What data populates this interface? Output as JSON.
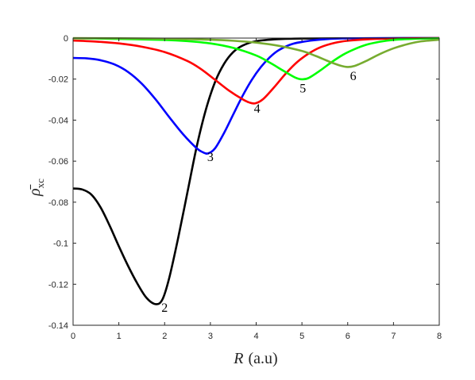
{
  "chart_data": {
    "type": "line",
    "xlabel_var": "R",
    "xlabel_unit": "(a.u)",
    "ylabel_main": "ρ̄",
    "ylabel_sub": "xc",
    "xlim": [
      0,
      8
    ],
    "ylim": [
      -0.14,
      0
    ],
    "x_ticks": [
      0,
      1,
      2,
      3,
      4,
      5,
      6,
      7,
      8
    ],
    "x_tick_labels": [
      "0",
      "1",
      "2",
      "3",
      "4",
      "5",
      "6",
      "7",
      "8"
    ],
    "y_ticks": [
      0,
      -0.02,
      -0.04,
      -0.06,
      -0.08,
      -0.1,
      -0.12,
      -0.14
    ],
    "y_tick_labels": [
      "0",
      "-0.02",
      "-0.04",
      "-0.06",
      "-0.08",
      "-0.1",
      "-0.12",
      "-0.14"
    ],
    "grid": false,
    "series": [
      {
        "label": "2",
        "color": "#000000",
        "label_at": [
          1.93,
          -0.1315
        ],
        "points": [
          [
            0,
            -0.0733
          ],
          [
            0.2,
            -0.0738
          ],
          [
            0.4,
            -0.0763
          ],
          [
            0.6,
            -0.0825
          ],
          [
            0.8,
            -0.0915
          ],
          [
            1.0,
            -0.1015
          ],
          [
            1.2,
            -0.111
          ],
          [
            1.4,
            -0.1195
          ],
          [
            1.6,
            -0.1265
          ],
          [
            1.8,
            -0.1297
          ],
          [
            1.95,
            -0.1275
          ],
          [
            2.1,
            -0.117
          ],
          [
            2.3,
            -0.097
          ],
          [
            2.5,
            -0.075
          ],
          [
            2.7,
            -0.053
          ],
          [
            2.9,
            -0.035
          ],
          [
            3.1,
            -0.0215
          ],
          [
            3.3,
            -0.0125
          ],
          [
            3.5,
            -0.0068
          ],
          [
            3.7,
            -0.0037
          ],
          [
            4.0,
            -0.0015
          ],
          [
            4.5,
            -0.0005
          ],
          [
            5,
            -0.0002
          ],
          [
            6,
            -0.0001
          ],
          [
            8,
            0
          ]
        ]
      },
      {
        "label": "3",
        "color": "#0000ff",
        "label_at": [
          2.93,
          -0.058
        ],
        "points": [
          [
            0,
            -0.0097
          ],
          [
            0.3,
            -0.0099
          ],
          [
            0.6,
            -0.0108
          ],
          [
            0.9,
            -0.0128
          ],
          [
            1.2,
            -0.0165
          ],
          [
            1.5,
            -0.0222
          ],
          [
            1.8,
            -0.0298
          ],
          [
            2.1,
            -0.0385
          ],
          [
            2.4,
            -0.0468
          ],
          [
            2.7,
            -0.0537
          ],
          [
            2.85,
            -0.0558
          ],
          [
            2.95,
            -0.0562
          ],
          [
            3.1,
            -0.0538
          ],
          [
            3.3,
            -0.0462
          ],
          [
            3.5,
            -0.0372
          ],
          [
            3.7,
            -0.0283
          ],
          [
            3.9,
            -0.0205
          ],
          [
            4.1,
            -0.0142
          ],
          [
            4.3,
            -0.0093
          ],
          [
            4.5,
            -0.0058
          ],
          [
            4.8,
            -0.0028
          ],
          [
            5.2,
            -0.0012
          ],
          [
            5.6,
            -0.0004
          ],
          [
            6.2,
            -0.0001
          ],
          [
            8,
            0
          ]
        ]
      },
      {
        "label": "4",
        "color": "#ff0000",
        "label_at": [
          3.95,
          -0.0345
        ],
        "points": [
          [
            0,
            -0.0012
          ],
          [
            0.5,
            -0.0017
          ],
          [
            1.0,
            -0.0026
          ],
          [
            1.5,
            -0.0042
          ],
          [
            2.0,
            -0.0068
          ],
          [
            2.5,
            -0.0112
          ],
          [
            2.8,
            -0.0152
          ],
          [
            3.1,
            -0.0203
          ],
          [
            3.4,
            -0.0255
          ],
          [
            3.7,
            -0.0298
          ],
          [
            3.85,
            -0.0314
          ],
          [
            3.98,
            -0.0318
          ],
          [
            4.15,
            -0.0298
          ],
          [
            4.4,
            -0.0238
          ],
          [
            4.65,
            -0.0172
          ],
          [
            4.9,
            -0.0116
          ],
          [
            5.15,
            -0.0075
          ],
          [
            5.4,
            -0.0045
          ],
          [
            5.7,
            -0.0024
          ],
          [
            6.0,
            -0.0013
          ],
          [
            6.5,
            -0.0005
          ],
          [
            7.0,
            -0.0002
          ],
          [
            8,
            0
          ]
        ]
      },
      {
        "label": "5",
        "color": "#00ff00",
        "label_at": [
          4.95,
          -0.0245
        ],
        "points": [
          [
            0,
            -0.0001
          ],
          [
            1.0,
            -0.0004
          ],
          [
            2.0,
            -0.0009
          ],
          [
            2.5,
            -0.0015
          ],
          [
            3.0,
            -0.0026
          ],
          [
            3.5,
            -0.0048
          ],
          [
            4.0,
            -0.0085
          ],
          [
            4.3,
            -0.012
          ],
          [
            4.6,
            -0.016
          ],
          [
            4.85,
            -0.0192
          ],
          [
            5.0,
            -0.0201
          ],
          [
            5.15,
            -0.0194
          ],
          [
            5.4,
            -0.0158
          ],
          [
            5.65,
            -0.0117
          ],
          [
            5.9,
            -0.0081
          ],
          [
            6.15,
            -0.0054
          ],
          [
            6.4,
            -0.0033
          ],
          [
            6.7,
            -0.0018
          ],
          [
            7.0,
            -0.0009
          ],
          [
            7.5,
            -0.0003
          ],
          [
            8,
            -0.0001
          ]
        ]
      },
      {
        "label": "6",
        "color": "#77ac30",
        "label_at": [
          6.05,
          -0.0185
        ],
        "points": [
          [
            0,
            0
          ],
          [
            1.0,
            -0.0001
          ],
          [
            2.0,
            -0.0003
          ],
          [
            3.0,
            -0.0008
          ],
          [
            3.5,
            -0.0013
          ],
          [
            4.0,
            -0.0022
          ],
          [
            4.5,
            -0.0038
          ],
          [
            5.0,
            -0.0063
          ],
          [
            5.3,
            -0.0087
          ],
          [
            5.6,
            -0.0115
          ],
          [
            5.85,
            -0.0135
          ],
          [
            6.0,
            -0.0141
          ],
          [
            6.15,
            -0.0136
          ],
          [
            6.4,
            -0.0112
          ],
          [
            6.7,
            -0.0078
          ],
          [
            7.0,
            -0.005
          ],
          [
            7.3,
            -0.003
          ],
          [
            7.6,
            -0.0016
          ],
          [
            8,
            -0.0008
          ]
        ]
      }
    ]
  }
}
